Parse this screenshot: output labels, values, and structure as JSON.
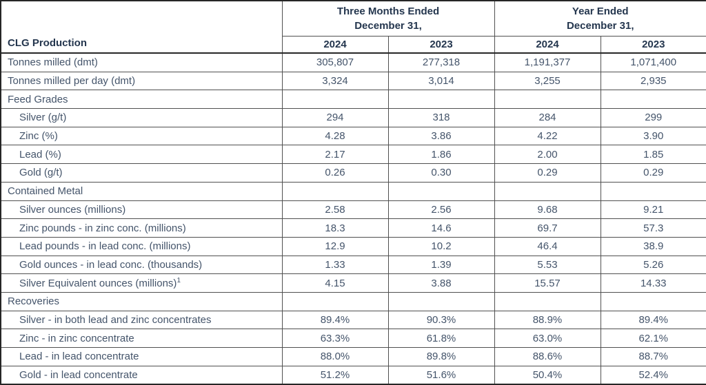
{
  "table": {
    "title": "CLG Production",
    "header": {
      "label_col": "CLG Production",
      "groups": [
        {
          "line1": "Three Months Ended",
          "line2": "December 31,"
        },
        {
          "line1": "Year Ended",
          "line2": "December 31,"
        }
      ],
      "years": [
        "2024",
        "2023",
        "2024",
        "2023"
      ]
    },
    "rows": [
      {
        "label": "Tonnes milled (dmt)",
        "indent": false,
        "section": false,
        "values": [
          "305,807",
          "277,318",
          "1,191,377",
          "1,071,400"
        ]
      },
      {
        "label": "Tonnes milled per day (dmt)",
        "indent": false,
        "section": false,
        "values": [
          "3,324",
          "3,014",
          "3,255",
          "2,935"
        ]
      },
      {
        "label": "Feed Grades",
        "indent": false,
        "section": true,
        "values": [
          "",
          "",
          "",
          ""
        ]
      },
      {
        "label": "Silver (g/t)",
        "indent": true,
        "section": false,
        "values": [
          "294",
          "318",
          "284",
          "299"
        ]
      },
      {
        "label": "Zinc (%)",
        "indent": true,
        "section": false,
        "values": [
          "4.28",
          "3.86",
          "4.22",
          "3.90"
        ]
      },
      {
        "label": "Lead (%)",
        "indent": true,
        "section": false,
        "values": [
          "2.17",
          "1.86",
          "2.00",
          "1.85"
        ]
      },
      {
        "label": "Gold (g/t)",
        "indent": true,
        "section": false,
        "values": [
          "0.26",
          "0.30",
          "0.29",
          "0.29"
        ]
      },
      {
        "label": "Contained Metal",
        "indent": false,
        "section": true,
        "values": [
          "",
          "",
          "",
          ""
        ]
      },
      {
        "label": "Silver ounces (millions)",
        "indent": true,
        "section": false,
        "values": [
          "2.58",
          "2.56",
          "9.68",
          "9.21"
        ]
      },
      {
        "label": "Zinc pounds - in zinc conc. (millions)",
        "indent": true,
        "section": false,
        "values": [
          "18.3",
          "14.6",
          "69.7",
          "57.3"
        ]
      },
      {
        "label": "Lead pounds - in lead conc. (millions)",
        "indent": true,
        "section": false,
        "values": [
          "12.9",
          "10.2",
          "46.4",
          "38.9"
        ]
      },
      {
        "label": "Gold ounces - in lead conc. (thousands)",
        "indent": true,
        "section": false,
        "values": [
          "1.33",
          "1.39",
          "5.53",
          "5.26"
        ]
      },
      {
        "label": "Silver Equivalent ounces (millions)",
        "sup": "1",
        "indent": true,
        "section": false,
        "values": [
          "4.15",
          "3.88",
          "15.57",
          "14.33"
        ]
      },
      {
        "label": "Recoveries",
        "indent": false,
        "section": true,
        "values": [
          "",
          "",
          "",
          ""
        ]
      },
      {
        "label": "Silver - in both lead and zinc concentrates",
        "indent": true,
        "section": false,
        "values": [
          "89.4%",
          "90.3%",
          "88.9%",
          "89.4%"
        ]
      },
      {
        "label": "Zinc - in zinc concentrate",
        "indent": true,
        "section": false,
        "values": [
          "63.3%",
          "61.8%",
          "63.0%",
          "62.1%"
        ]
      },
      {
        "label": "Lead - in lead concentrate",
        "indent": true,
        "section": false,
        "values": [
          "88.0%",
          "89.8%",
          "88.6%",
          "88.7%"
        ]
      },
      {
        "label": "Gold - in lead concentrate",
        "indent": true,
        "section": false,
        "values": [
          "51.2%",
          "51.6%",
          "50.4%",
          "52.4%"
        ]
      }
    ],
    "colors": {
      "header_text": "#24364e",
      "body_text": "#44546a",
      "border": "#4f4f4f",
      "heavy_border": "#262626",
      "background": "#ffffff"
    }
  }
}
